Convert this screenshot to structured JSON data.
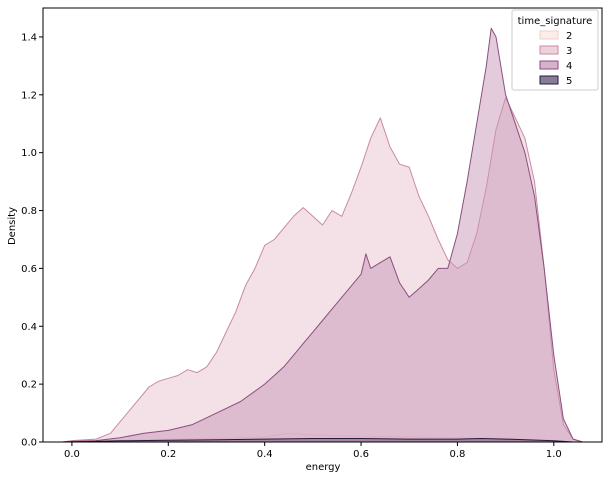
{
  "chart_data": {
    "type": "area",
    "xlabel": "energy",
    "ylabel": "Density",
    "xlim": [
      -0.06,
      1.1
    ],
    "ylim": [
      0,
      1.5
    ],
    "xticks": [
      "0.0",
      "0.2",
      "0.4",
      "0.6",
      "0.8",
      "1.0"
    ],
    "xtick_values": [
      0.0,
      0.2,
      0.4,
      0.6,
      0.8,
      1.0
    ],
    "yticks": [
      "0.0",
      "0.2",
      "0.4",
      "0.6",
      "0.8",
      "1.0",
      "1.2",
      "1.4"
    ],
    "ytick_values": [
      0.0,
      0.2,
      0.4,
      0.6,
      0.8,
      1.0,
      1.2,
      1.4
    ],
    "grid": false,
    "legend": {
      "title": "time_signature",
      "placement": "top-right",
      "entries": [
        "2",
        "3",
        "4",
        "5"
      ]
    },
    "series": [
      {
        "name": "2",
        "fill": "#f9e6e2",
        "stroke": "#f0cfc9",
        "fill_opacity": 0.45,
        "x": [
          -0.02,
          0.05,
          0.1,
          0.2,
          0.3,
          0.4,
          0.45,
          0.5,
          0.55,
          0.6,
          0.7,
          0.8,
          0.9,
          1.0,
          1.04
        ],
        "y": [
          0,
          0.003,
          0.006,
          0.01,
          0.013,
          0.018,
          0.03,
          0.025,
          0.022,
          0.02,
          0.018,
          0.015,
          0.012,
          0.006,
          0
        ]
      },
      {
        "name": "3",
        "fill": "#e8c3cf",
        "stroke": "#c98aa3",
        "fill_opacity": 0.5,
        "x": [
          -0.02,
          0.0,
          0.05,
          0.08,
          0.1,
          0.12,
          0.14,
          0.16,
          0.18,
          0.2,
          0.22,
          0.24,
          0.26,
          0.28,
          0.3,
          0.32,
          0.34,
          0.36,
          0.38,
          0.4,
          0.42,
          0.44,
          0.46,
          0.48,
          0.5,
          0.52,
          0.54,
          0.56,
          0.58,
          0.6,
          0.62,
          0.64,
          0.66,
          0.68,
          0.7,
          0.72,
          0.74,
          0.76,
          0.78,
          0.8,
          0.82,
          0.84,
          0.86,
          0.88,
          0.9,
          0.92,
          0.94,
          0.96,
          0.98,
          1.0,
          1.02,
          1.04,
          1.06
        ],
        "y": [
          0,
          0.005,
          0.01,
          0.03,
          0.07,
          0.11,
          0.15,
          0.19,
          0.21,
          0.22,
          0.23,
          0.25,
          0.24,
          0.26,
          0.31,
          0.38,
          0.45,
          0.54,
          0.6,
          0.68,
          0.7,
          0.74,
          0.78,
          0.81,
          0.78,
          0.75,
          0.8,
          0.78,
          0.86,
          0.95,
          1.05,
          1.12,
          1.02,
          0.96,
          0.95,
          0.85,
          0.78,
          0.7,
          0.63,
          0.6,
          0.62,
          0.72,
          0.88,
          1.08,
          1.19,
          1.12,
          1.05,
          0.9,
          0.6,
          0.25,
          0.06,
          0.01,
          0
        ]
      },
      {
        "name": "4",
        "fill": "#c998b8",
        "stroke": "#8a4f7d",
        "fill_opacity": 0.5,
        "x": [
          -0.02,
          0.0,
          0.05,
          0.1,
          0.15,
          0.2,
          0.25,
          0.3,
          0.35,
          0.4,
          0.42,
          0.44,
          0.46,
          0.48,
          0.5,
          0.52,
          0.54,
          0.56,
          0.58,
          0.6,
          0.61,
          0.62,
          0.64,
          0.66,
          0.68,
          0.7,
          0.72,
          0.74,
          0.76,
          0.78,
          0.8,
          0.82,
          0.84,
          0.86,
          0.87,
          0.88,
          0.9,
          0.92,
          0.94,
          0.96,
          0.98,
          1.0,
          1.02,
          1.04,
          1.06
        ],
        "y": [
          0,
          0.002,
          0.005,
          0.015,
          0.03,
          0.04,
          0.06,
          0.1,
          0.14,
          0.2,
          0.23,
          0.26,
          0.3,
          0.34,
          0.38,
          0.42,
          0.46,
          0.5,
          0.54,
          0.58,
          0.65,
          0.6,
          0.62,
          0.64,
          0.55,
          0.5,
          0.53,
          0.56,
          0.6,
          0.6,
          0.72,
          0.9,
          1.1,
          1.3,
          1.43,
          1.4,
          1.2,
          1.1,
          1.0,
          0.85,
          0.6,
          0.3,
          0.08,
          0.01,
          0
        ]
      },
      {
        "name": "5",
        "fill": "#3b2553",
        "stroke": "#2a1a3f",
        "fill_opacity": 0.35,
        "x": [
          -0.02,
          0.05,
          0.1,
          0.2,
          0.3,
          0.4,
          0.5,
          0.6,
          0.7,
          0.8,
          0.85,
          0.9,
          1.0,
          1.04
        ],
        "y": [
          0,
          0.002,
          0.004,
          0.006,
          0.008,
          0.01,
          0.012,
          0.012,
          0.01,
          0.01,
          0.012,
          0.01,
          0.004,
          0
        ]
      }
    ]
  }
}
